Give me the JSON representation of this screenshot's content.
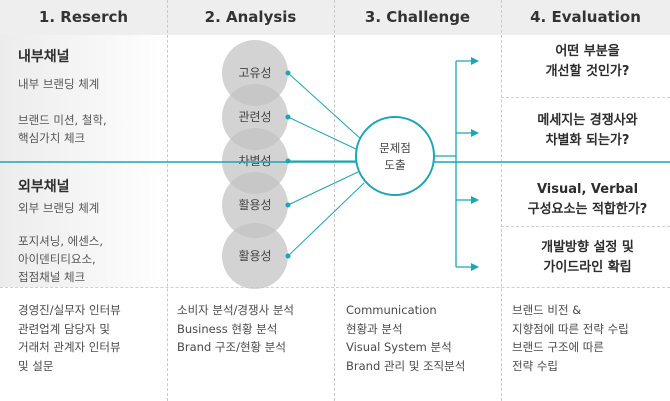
{
  "columns": [
    "1. Reserch",
    "2. Analysis",
    "3. Challenge",
    "4. Evaluation"
  ],
  "internal": {
    "title": "내부채널",
    "subtitle": "내부 브랜딩 체계",
    "lines": [
      "브랜드 미션, 철학,",
      "핵심가치 체크"
    ]
  },
  "external": {
    "title": "외부채널",
    "subtitle": "외부 브랜딩 체계",
    "lines": [
      "포지셔닝, 에센스,",
      "아이덴티티요소,",
      "접점채널 체크"
    ]
  },
  "analysis_circles": [
    "고유성",
    "관련성",
    "차별성",
    "활용성",
    "활용성"
  ],
  "challenge": {
    "lines": [
      "문제점",
      "도출"
    ]
  },
  "evaluation": [
    [
      "어떤 부분을",
      "개선할 것인가?"
    ],
    [
      "메세지는 경쟁사와",
      "차별화 되는가?"
    ],
    [
      "Visual, Verbal",
      "구성요소는 적합한가?"
    ],
    [
      "개발방향 설정 및",
      "가이드라인 확립"
    ]
  ],
  "bottom": [
    [
      "경영진/실무자 인터뷰",
      "관련업계 담당자 및",
      "거래처 관계자 인터뷰",
      "및 설문"
    ],
    [
      "소비자 분석/경쟁사 분석",
      "Business 현황 분석",
      "Brand 구조/현황 분석"
    ],
    [
      "Communication",
      "현황과 분석",
      "Visual System 분석",
      "Brand 관리 및 조직분석"
    ],
    [
      "브랜드 비전 &",
      "지향점에 따른 전략 수립",
      "브랜드 구조에 따른",
      "전략 수립"
    ]
  ],
  "colors": {
    "accent": "#1aa6b5",
    "header_bg": "#eeeeee"
  }
}
